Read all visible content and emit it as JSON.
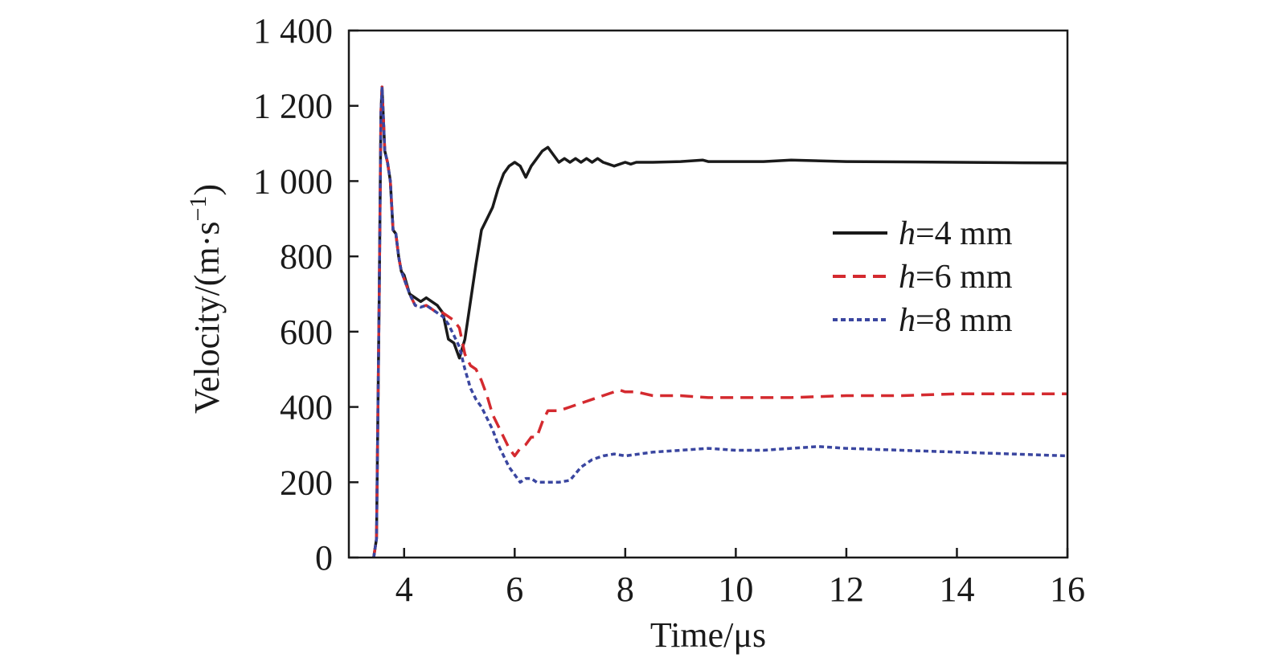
{
  "chart_data": {
    "type": "line",
    "title": "",
    "xlabel": "Time/μs",
    "ylabel_main": "Velocity/(m·s",
    "ylabel_sup": "−1",
    "ylabel_close": ")",
    "xlim": [
      3,
      16
    ],
    "ylim": [
      0,
      1400
    ],
    "xticks": [
      4,
      6,
      8,
      10,
      12,
      14,
      16
    ],
    "yticks": [
      0,
      200,
      400,
      600,
      800,
      1000,
      1200,
      1400
    ],
    "xtick_labels": [
      "4",
      "6",
      "8",
      "10",
      "12",
      14,
      "16"
    ],
    "ytick_labels": [
      "0",
      "200",
      "400",
      "600",
      "800",
      "1 000",
      "1 200",
      "1 400"
    ],
    "grid": false,
    "legend_position": "right",
    "series": [
      {
        "name_italic": "h",
        "name_rest": "=4 mm",
        "color": "#1a1a1a",
        "dash": "solid",
        "x": [
          3.45,
          3.5,
          3.55,
          3.58,
          3.6,
          3.63,
          3.65,
          3.7,
          3.75,
          3.8,
          3.85,
          3.9,
          3.95,
          4.0,
          4.1,
          4.2,
          4.3,
          4.4,
          4.5,
          4.6,
          4.7,
          4.8,
          4.9,
          5.0,
          5.1,
          5.2,
          5.3,
          5.4,
          5.5,
          5.6,
          5.7,
          5.8,
          5.9,
          6.0,
          6.1,
          6.2,
          6.3,
          6.4,
          6.5,
          6.6,
          6.7,
          6.8,
          6.9,
          7.0,
          7.1,
          7.2,
          7.3,
          7.4,
          7.5,
          7.6,
          7.7,
          7.8,
          7.9,
          8.0,
          8.1,
          8.2,
          8.5,
          9.0,
          9.4,
          9.5,
          10.0,
          10.5,
          11.0,
          12.0,
          13.0,
          14.0,
          15.0,
          16.0
        ],
        "y": [
          0,
          50,
          700,
          1180,
          1250,
          1150,
          1080,
          1050,
          1000,
          870,
          860,
          800,
          760,
          750,
          700,
          690,
          680,
          690,
          680,
          670,
          650,
          580,
          570,
          530,
          580,
          680,
          780,
          870,
          900,
          930,
          980,
          1020,
          1040,
          1050,
          1040,
          1010,
          1040,
          1060,
          1080,
          1090,
          1070,
          1050,
          1060,
          1050,
          1060,
          1050,
          1060,
          1050,
          1060,
          1050,
          1045,
          1040,
          1045,
          1050,
          1045,
          1050,
          1050,
          1052,
          1056,
          1052,
          1052,
          1052,
          1056,
          1052,
          1051,
          1050,
          1049,
          1048
        ]
      },
      {
        "name_italic": "h",
        "name_rest": "=6 mm",
        "color": "#d42a2f",
        "dash": "dashed",
        "x": [
          3.45,
          3.5,
          3.55,
          3.58,
          3.6,
          3.63,
          3.65,
          3.7,
          3.75,
          3.8,
          3.85,
          3.9,
          3.95,
          4.0,
          4.1,
          4.2,
          4.3,
          4.4,
          4.5,
          4.6,
          4.7,
          4.8,
          4.9,
          5.0,
          5.1,
          5.2,
          5.3,
          5.4,
          5.5,
          5.6,
          5.7,
          5.8,
          5.9,
          6.0,
          6.1,
          6.2,
          6.3,
          6.4,
          6.5,
          6.6,
          6.7,
          6.8,
          7.0,
          7.2,
          7.4,
          7.6,
          7.8,
          7.9,
          8.0,
          8.2,
          8.5,
          9.0,
          9.5,
          10.0,
          11.0,
          12.0,
          13.0,
          14.0,
          15.0,
          16.0
        ],
        "y": [
          0,
          50,
          700,
          1180,
          1250,
          1150,
          1080,
          1050,
          1000,
          870,
          860,
          800,
          760,
          740,
          700,
          670,
          665,
          670,
          660,
          650,
          650,
          640,
          630,
          610,
          540,
          510,
          500,
          470,
          430,
          380,
          350,
          320,
          290,
          270,
          290,
          300,
          320,
          320,
          360,
          390,
          390,
          390,
          400,
          410,
          420,
          430,
          440,
          445,
          440,
          440,
          430,
          430,
          425,
          425,
          425,
          430,
          430,
          435,
          435,
          435
        ]
      },
      {
        "name_italic": "h",
        "name_rest": "=8 mm",
        "color": "#3a46a0",
        "dash": "dotted",
        "x": [
          3.45,
          3.5,
          3.55,
          3.58,
          3.6,
          3.63,
          3.65,
          3.7,
          3.75,
          3.8,
          3.85,
          3.9,
          3.95,
          4.0,
          4.1,
          4.2,
          4.3,
          4.4,
          4.5,
          4.6,
          4.7,
          4.8,
          4.9,
          5.0,
          5.1,
          5.2,
          5.3,
          5.4,
          5.5,
          5.6,
          5.7,
          5.8,
          5.9,
          6.0,
          6.1,
          6.2,
          6.3,
          6.4,
          6.5,
          6.6,
          6.8,
          7.0,
          7.2,
          7.4,
          7.6,
          7.8,
          8.0,
          8.5,
          9.0,
          9.5,
          10.0,
          10.5,
          11.0,
          11.5,
          12.0,
          13.0,
          14.0,
          15.0,
          16.0
        ],
        "y": [
          0,
          50,
          700,
          1180,
          1250,
          1150,
          1080,
          1050,
          1000,
          870,
          860,
          800,
          760,
          740,
          700,
          670,
          665,
          670,
          660,
          650,
          640,
          620,
          590,
          560,
          500,
          450,
          420,
          400,
          370,
          340,
          300,
          270,
          240,
          220,
          200,
          210,
          210,
          200,
          200,
          200,
          200,
          205,
          240,
          260,
          270,
          275,
          270,
          280,
          285,
          290,
          285,
          285,
          290,
          295,
          290,
          285,
          280,
          275,
          270
        ]
      }
    ]
  }
}
